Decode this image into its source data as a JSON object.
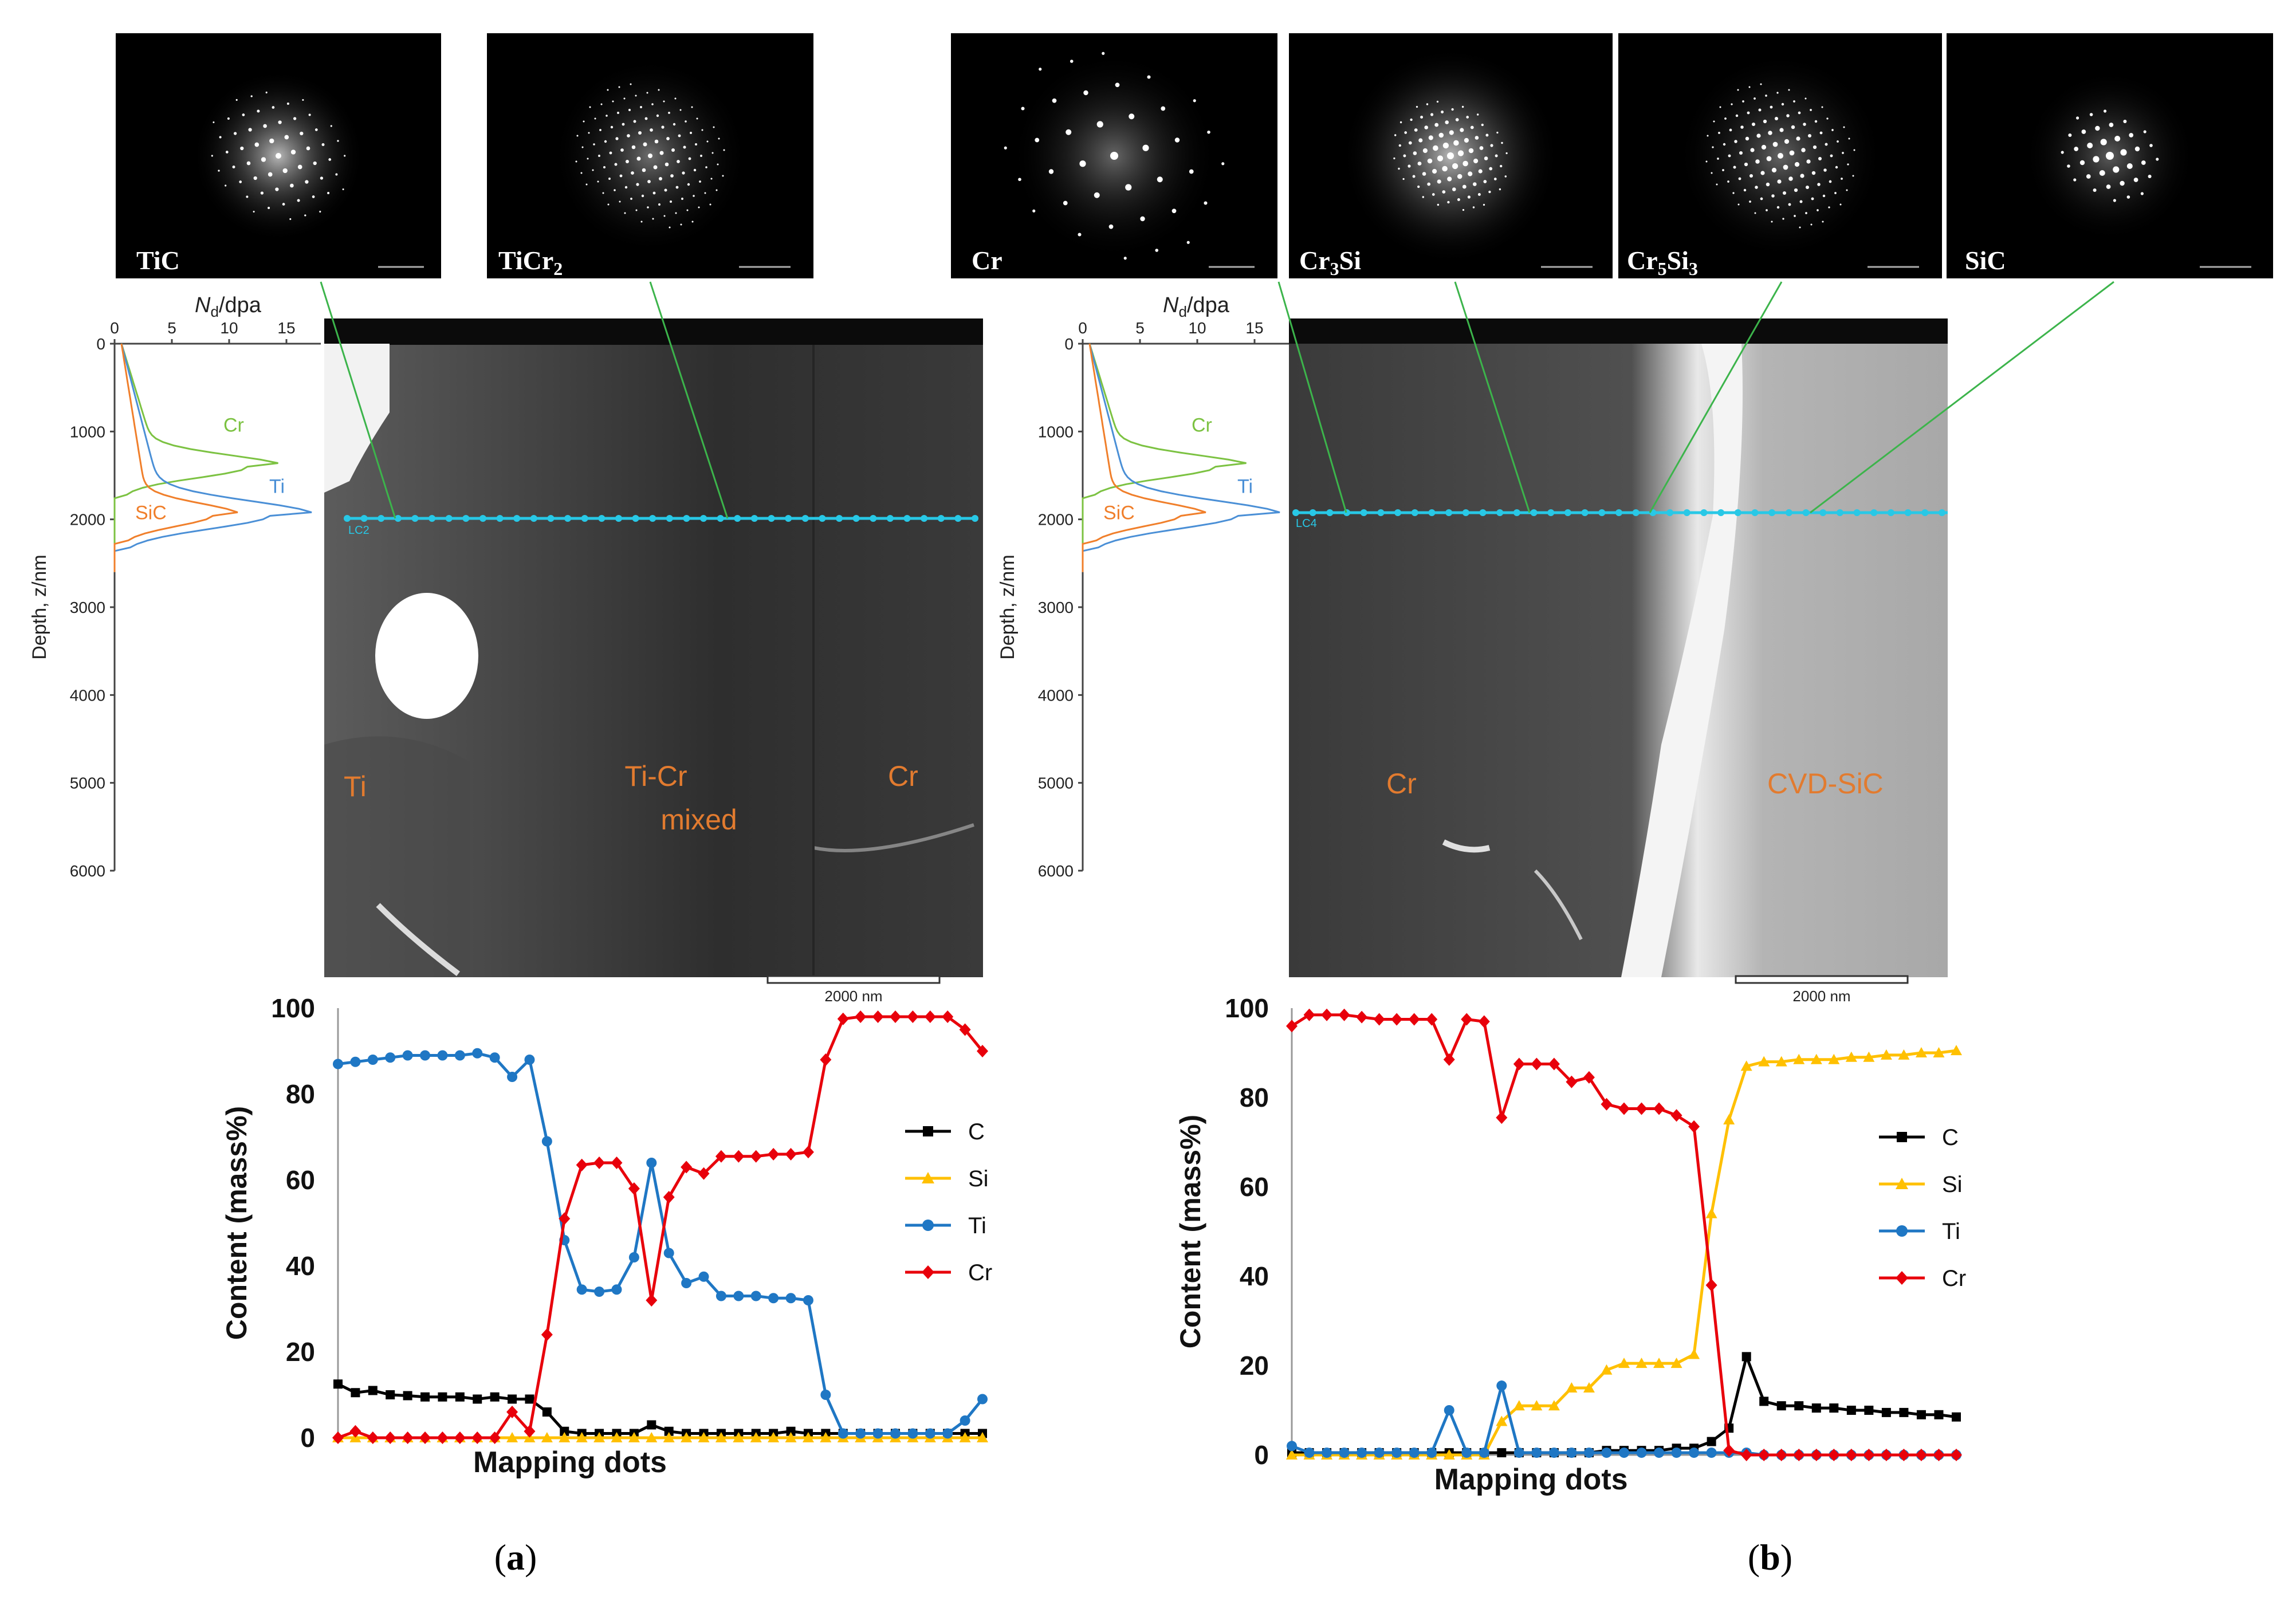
{
  "figure": {
    "panels": [
      {
        "id": "a",
        "caption": "a",
        "diffraction_patterns": [
          {
            "label": "TiC"
          },
          {
            "label_main": "TiCr",
            "label_sub": "2"
          }
        ],
        "profile": {
          "x_axis_label_main": "N",
          "x_axis_label_sub": "d",
          "x_axis_label_unit": "/dpa",
          "x_ticks": [
            "0",
            "5",
            "10",
            "15"
          ],
          "y_axis_label": "Depth, z/nm",
          "y_ticks": [
            "0",
            "1000",
            "2000",
            "3000",
            "4000",
            "5000",
            "6000"
          ],
          "curve_labels": [
            "Cr",
            "Ti",
            "SiC"
          ]
        },
        "micrograph": {
          "region_labels": [
            "Ti",
            "Ti-Cr",
            "mixed",
            "Cr"
          ],
          "scale_bar": "2000 nm",
          "line_tag": "LC2"
        },
        "line_chart": {
          "y_axis_label": "Content (mass%)",
          "x_axis_label": "Mapping dots"
        }
      },
      {
        "id": "b",
        "caption": "b",
        "diffraction_patterns": [
          {
            "label": "Cr"
          },
          {
            "label_main": "Cr",
            "label_sub": "3",
            "label_tail": "Si"
          },
          {
            "label_main": "Cr",
            "label_sub": "5",
            "label_tail": "Si",
            "label_sub2": "3"
          },
          {
            "label": "SiC"
          }
        ],
        "profile": {
          "x_axis_label_main": "N",
          "x_axis_label_sub": "d",
          "x_axis_label_unit": "/dpa",
          "x_ticks": [
            "0",
            "5",
            "10",
            "15"
          ],
          "y_axis_label": "Depth, z/nm",
          "y_ticks": [
            "0",
            "1000",
            "2000",
            "3000",
            "4000",
            "5000",
            "6000"
          ],
          "curve_labels": [
            "Cr",
            "Ti",
            "SiC"
          ]
        },
        "micrograph": {
          "region_labels": [
            "Cr",
            "CVD-SiC"
          ],
          "scale_bar": "2000 nm",
          "line_tag": "LC4"
        },
        "line_chart": {
          "y_axis_label": "Content (mass%)",
          "x_axis_label": "Mapping dots"
        }
      }
    ]
  },
  "chart_data": [
    {
      "type": "line",
      "panel": "a",
      "title": "",
      "xlabel": "Mapping dots",
      "ylabel": "Content (mass%)",
      "ylim": [
        0,
        100
      ],
      "y_ticks": [
        0,
        20,
        40,
        60,
        80,
        100
      ],
      "legend": "right",
      "series": [
        {
          "name": "C",
          "color": "#000000",
          "marker": "square",
          "values": [
            12.5,
            10.5,
            11,
            10,
            9.8,
            9.5,
            9.5,
            9.5,
            9,
            9.5,
            9,
            9,
            6,
            1.5,
            1,
            1,
            1,
            1,
            3,
            1.5,
            1,
            1,
            1,
            1,
            1,
            1,
            1.5,
            1,
            1,
            1,
            1,
            1,
            1,
            1,
            1,
            1,
            1,
            1
          ]
        },
        {
          "name": "Si",
          "color": "#ffc000",
          "marker": "triangle",
          "values": [
            0,
            0,
            0,
            0,
            0,
            0,
            0,
            0,
            0,
            0,
            0,
            0,
            0,
            0,
            0,
            0,
            0,
            0,
            0,
            0,
            0,
            0,
            0,
            0,
            0,
            0,
            0,
            0,
            0,
            0,
            0,
            0,
            0,
            0,
            0,
            0,
            0,
            0
          ]
        },
        {
          "name": "Ti",
          "color": "#1f77c4",
          "marker": "circle",
          "values": [
            87,
            87.5,
            88,
            88.5,
            89,
            89,
            89,
            89,
            89.5,
            88.5,
            84,
            88,
            69,
            46,
            34.5,
            34,
            34.5,
            42,
            64,
            43,
            36,
            37.5,
            33,
            33,
            33,
            32.5,
            32.5,
            32,
            10,
            1,
            1,
            1,
            1,
            1,
            1,
            1,
            4,
            9
          ]
        },
        {
          "name": "Cr",
          "color": "#e8000b",
          "marker": "diamond",
          "values": [
            0,
            1.5,
            0,
            0,
            0,
            0,
            0,
            0,
            0,
            0,
            6,
            1.5,
            24,
            51,
            63.5,
            64,
            64,
            58,
            32,
            56,
            63,
            61.5,
            65.5,
            65.5,
            65.5,
            66,
            66,
            66.5,
            88,
            97.5,
            98,
            98,
            98,
            98,
            98,
            98,
            95,
            90
          ]
        }
      ]
    },
    {
      "type": "line",
      "panel": "b",
      "title": "",
      "xlabel": "Mapping dots",
      "ylabel": "Content (mass%)",
      "ylim": [
        0,
        100
      ],
      "y_ticks": [
        0,
        20,
        40,
        60,
        80,
        100
      ],
      "legend": "right",
      "series": [
        {
          "name": "C",
          "color": "#000000",
          "marker": "square",
          "values": [
            0.5,
            0.5,
            0.5,
            0.5,
            0.5,
            0.5,
            0.5,
            0.5,
            0.5,
            0.5,
            0.5,
            0.5,
            0.5,
            0.5,
            0.5,
            0.5,
            0.5,
            0.5,
            1,
            1,
            1,
            1,
            1.5,
            1.5,
            3,
            6,
            22,
            12,
            11,
            11,
            10.5,
            10.5,
            10,
            10,
            9.5,
            9.5,
            9,
            9,
            8.5
          ]
        },
        {
          "name": "Si",
          "color": "#ffc000",
          "marker": "triangle",
          "values": [
            0,
            0,
            0,
            0,
            0,
            0,
            0,
            0,
            0,
            0,
            0,
            0,
            7.5,
            11,
            11,
            11,
            15,
            15,
            19,
            20.5,
            20.5,
            20.5,
            20.5,
            22.5,
            54,
            75,
            87,
            88,
            88,
            88.5,
            88.5,
            88.5,
            89,
            89,
            89.5,
            89.5,
            90,
            90,
            90.5
          ]
        },
        {
          "name": "Ti",
          "color": "#1f77c4",
          "marker": "circle",
          "values": [
            2,
            0.5,
            0.5,
            0.5,
            0.5,
            0.5,
            0.5,
            0.5,
            0.5,
            10,
            0.5,
            0.5,
            15.5,
            0.5,
            0.5,
            0.5,
            0.5,
            0.5,
            0.5,
            0.5,
            0.5,
            0.5,
            0.5,
            0.5,
            0.5,
            0.5,
            0.5,
            0,
            0,
            0,
            0,
            0,
            0,
            0,
            0,
            0,
            0,
            0,
            0
          ]
        },
        {
          "name": "Cr",
          "color": "#e8000b",
          "marker": "diamond",
          "values": [
            96,
            98.5,
            98.5,
            98.5,
            98,
            97.5,
            97.5,
            97.5,
            97.5,
            88.5,
            97.5,
            97,
            75.5,
            87.5,
            87.5,
            87.5,
            83.5,
            84.5,
            78.5,
            77.5,
            77.5,
            77.5,
            76,
            73.5,
            38,
            1,
            0,
            0,
            0,
            0,
            0,
            0,
            0,
            0,
            0,
            0,
            0,
            0,
            0
          ]
        }
      ]
    }
  ]
}
